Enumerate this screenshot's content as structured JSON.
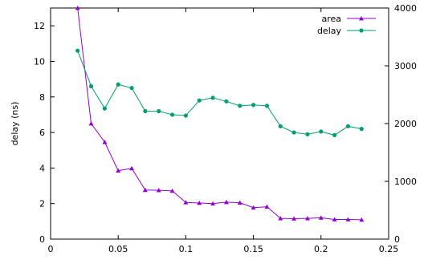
{
  "chart_data": {
    "type": "line",
    "title": "",
    "xlabel": "",
    "ylabel": "delay (ns)",
    "xlim": [
      0,
      0.25
    ],
    "ylim_left": [
      0,
      13
    ],
    "ylim_right": [
      0,
      4000
    ],
    "x_ticks": [
      {
        "value": 0,
        "label": "0"
      },
      {
        "value": 0.05,
        "label": "0.05"
      },
      {
        "value": 0.1,
        "label": "0.1"
      },
      {
        "value": 0.15,
        "label": "0.15"
      },
      {
        "value": 0.2,
        "label": "0.2"
      },
      {
        "value": 0.25,
        "label": "0.25"
      }
    ],
    "y_ticks_left": [
      {
        "value": 0,
        "label": "0"
      },
      {
        "value": 2,
        "label": "2"
      },
      {
        "value": 4,
        "label": "4"
      },
      {
        "value": 6,
        "label": "6"
      },
      {
        "value": 8,
        "label": "8"
      },
      {
        "value": 10,
        "label": "10"
      },
      {
        "value": 12,
        "label": "12"
      }
    ],
    "y_ticks_right": [
      {
        "value": 0,
        "label": "0"
      },
      {
        "value": 1000,
        "label": "1000"
      },
      {
        "value": 2000,
        "label": "2000"
      },
      {
        "value": 3000,
        "label": "3000"
      },
      {
        "value": 4000,
        "label": "4000"
      }
    ],
    "legend_position": "top-right",
    "grid": false,
    "x": [
      0.02,
      0.03,
      0.04,
      0.05,
      0.06,
      0.07,
      0.08,
      0.09,
      0.1,
      0.11,
      0.12,
      0.13,
      0.14,
      0.15,
      0.16,
      0.17,
      0.18,
      0.19,
      0.2,
      0.21,
      0.22,
      0.23
    ],
    "series": [
      {
        "name": "area",
        "axis": "right",
        "color": "#9400d3",
        "marker": "triangle",
        "values": [
          4000,
          2000,
          1680,
          1185,
          1225,
          850,
          845,
          835,
          635,
          625,
          615,
          640,
          630,
          545,
          560,
          360,
          355,
          360,
          370,
          340,
          340,
          335
        ]
      },
      {
        "name": "delay",
        "axis": "left",
        "color": "#009e73",
        "marker": "circle",
        "values": [
          10.6,
          8.6,
          7.35,
          8.7,
          8.5,
          7.2,
          7.2,
          7.0,
          6.95,
          7.8,
          7.95,
          7.75,
          7.5,
          7.55,
          7.5,
          6.35,
          6.0,
          5.9,
          6.05,
          5.85,
          6.35,
          6.2
        ]
      }
    ]
  }
}
